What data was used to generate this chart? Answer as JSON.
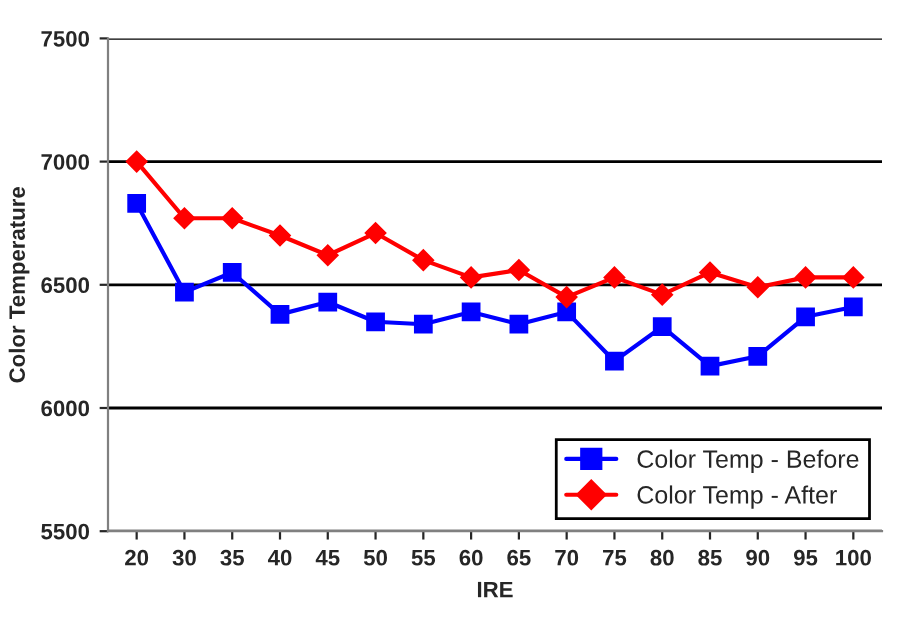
{
  "chart_data": {
    "type": "line",
    "xlabel": "IRE",
    "ylabel": "Color Temperature",
    "categories": [
      "20",
      "30",
      "35",
      "40",
      "45",
      "50",
      "55",
      "60",
      "65",
      "70",
      "75",
      "80",
      "85",
      "90",
      "95",
      "100"
    ],
    "series": [
      {
        "name": "Color Temp - Before",
        "color": "#0000ff",
        "marker": "square",
        "values": [
          6830,
          6470,
          6550,
          6380,
          6430,
          6350,
          6340,
          6390,
          6340,
          6390,
          6190,
          6330,
          6170,
          6210,
          6370,
          6410
        ]
      },
      {
        "name": "Color Temp - After",
        "color": "#ff0000",
        "marker": "diamond",
        "values": [
          7000,
          6770,
          6770,
          6700,
          6620,
          6710,
          6600,
          6530,
          6560,
          6450,
          6530,
          6460,
          6550,
          6490,
          6530,
          6530
        ]
      }
    ],
    "ylim": [
      5500,
      7500
    ],
    "yticks": [
      5500,
      6000,
      6500,
      7000,
      7500
    ],
    "grid": "y",
    "legend": "bottom right",
    "line_style": "solid"
  }
}
